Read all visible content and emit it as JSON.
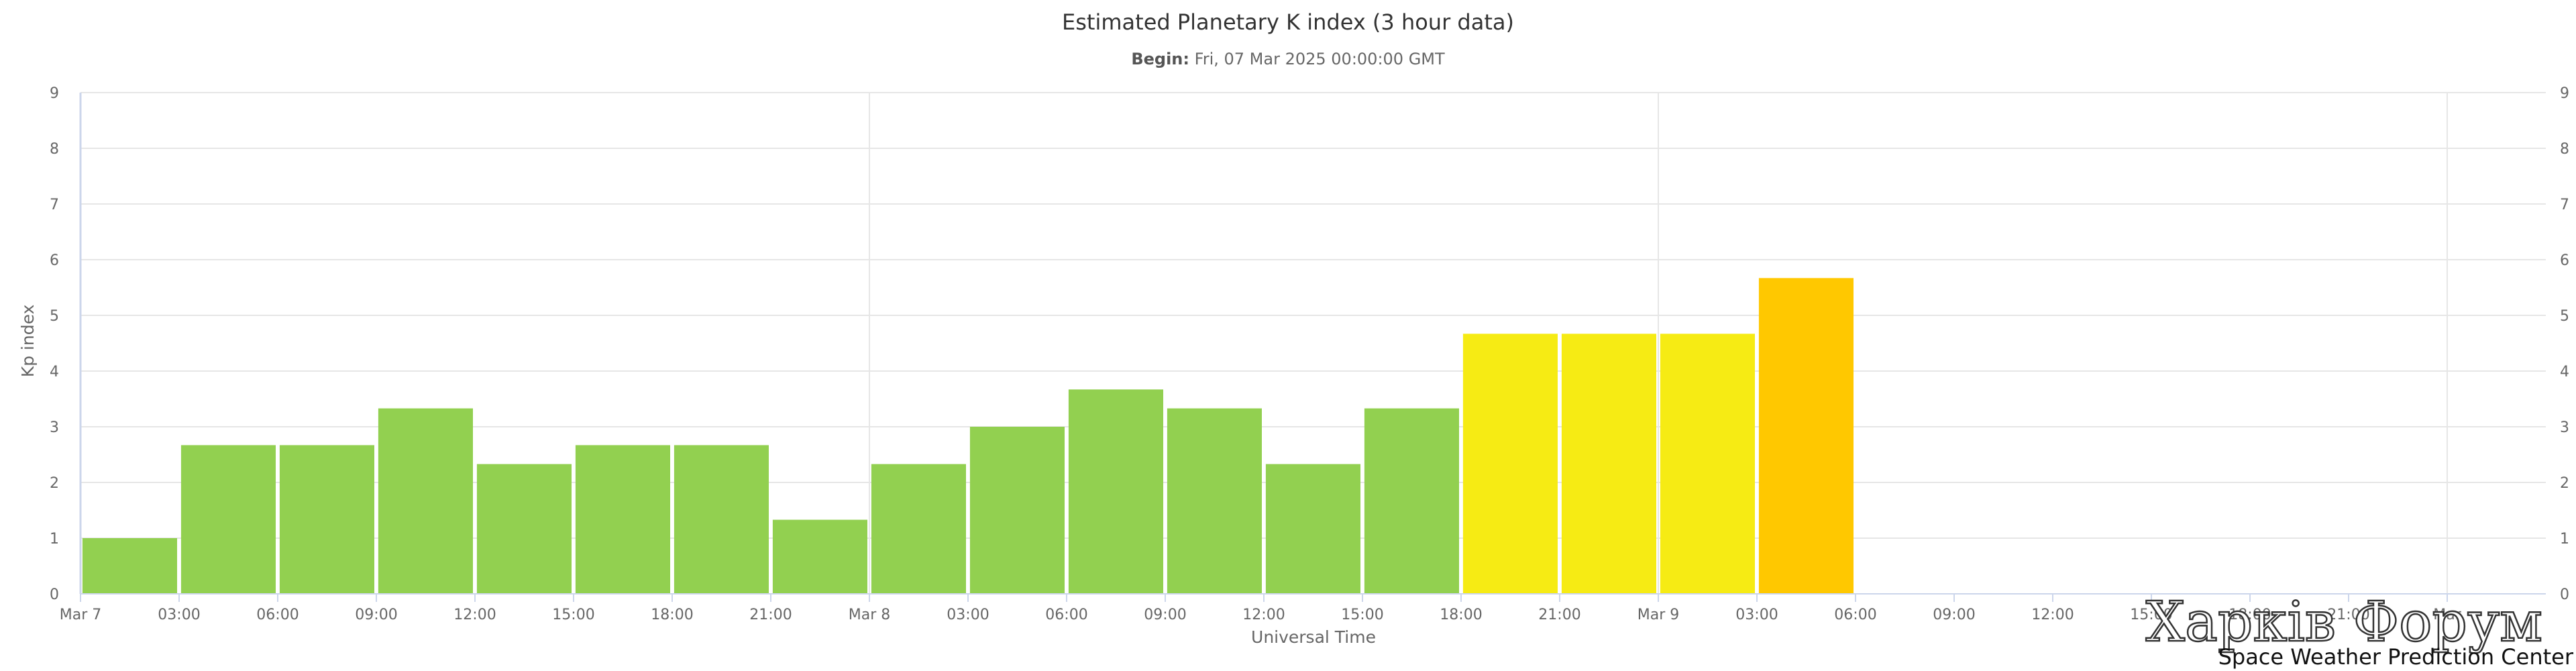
{
  "chart_data": {
    "type": "bar",
    "title": "Estimated Planetary K index (3 hour data)",
    "subtitle": {
      "label": "Begin:",
      "value": "Fri, 07 Mar 2025 00:00:00 GMT"
    },
    "xlabel": "Universal Time",
    "ylabel": "Kp index",
    "ylim": [
      0,
      9
    ],
    "yticks": [
      "0",
      "1",
      "2",
      "3",
      "4",
      "5",
      "6",
      "7",
      "8",
      "9"
    ],
    "x_ticks": [
      "Mar 7",
      "03:00",
      "06:00",
      "09:00",
      "12:00",
      "15:00",
      "18:00",
      "21:00",
      "Mar 8",
      "03:00",
      "06:00",
      "09:00",
      "12:00",
      "15:00",
      "18:00",
      "21:00",
      "Mar 9",
      "03:00",
      "06:00",
      "09:00",
      "12:00",
      "15:00",
      "18:00",
      "21:00",
      "Mar"
    ],
    "x_tick_hours": [
      0,
      3,
      6,
      9,
      12,
      15,
      18,
      21,
      24,
      27,
      30,
      33,
      36,
      39,
      42,
      45,
      48,
      51,
      54,
      57,
      60,
      63,
      66,
      69,
      72
    ],
    "x_range_hours": [
      0,
      75
    ],
    "bar_width_hours": 3,
    "values": [
      1.0,
      2.67,
      2.67,
      3.33,
      2.33,
      2.67,
      2.67,
      1.33,
      2.33,
      3.0,
      3.67,
      3.33,
      2.33,
      3.33,
      4.67,
      4.67,
      4.67,
      5.67
    ],
    "colors": [
      "#92d050",
      "#92d050",
      "#92d050",
      "#92d050",
      "#92d050",
      "#92d050",
      "#92d050",
      "#92d050",
      "#92d050",
      "#92d050",
      "#92d050",
      "#92d050",
      "#92d050",
      "#92d050",
      "#f6eb14",
      "#f6eb14",
      "#f6eb14",
      "#ffc800"
    ],
    "grid": true,
    "legend": "none"
  },
  "watermark": "Харків Форум",
  "credit": "Space Weather Prediction Center"
}
